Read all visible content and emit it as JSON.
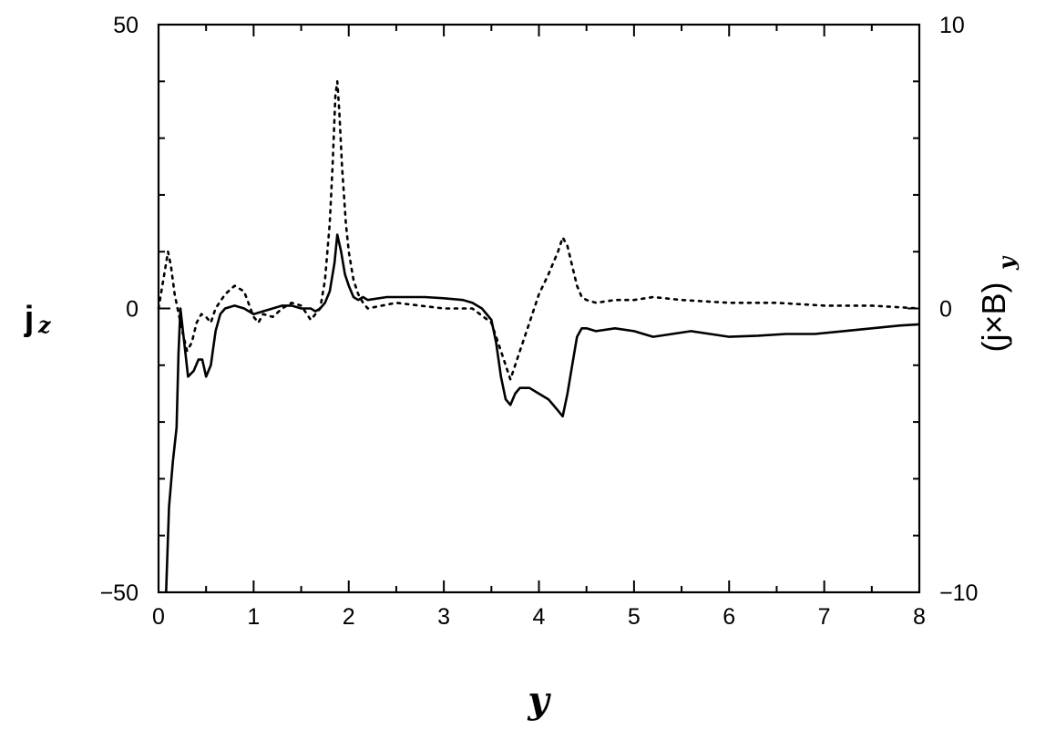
{
  "chart_data": {
    "type": "line",
    "title": "",
    "xlabel": "y",
    "ylabel_left": {
      "base": "j",
      "sub": "z"
    },
    "ylabel_right": {
      "base": "(j×B)",
      "sub": "y"
    },
    "xlim": [
      0,
      8
    ],
    "ylim_left": [
      -50,
      50
    ],
    "ylim_right": [
      -10,
      10
    ],
    "x_ticks": [
      "0",
      "1",
      "2",
      "3",
      "4",
      "5",
      "6",
      "7",
      "8"
    ],
    "y_ticks_left": [
      "50",
      "0",
      "−50"
    ],
    "y_ticks_right": [
      "10",
      "0",
      "−10"
    ],
    "grid": false,
    "series": [
      {
        "axis": "left",
        "style": "solid",
        "x": [
          0.08,
          0.11,
          0.15,
          0.19,
          0.21,
          0.23,
          0.27,
          0.31,
          0.37,
          0.42,
          0.46,
          0.5,
          0.55,
          0.6,
          0.65,
          0.7,
          0.8,
          0.9,
          1.0,
          1.1,
          1.2,
          1.3,
          1.4,
          1.5,
          1.6,
          1.65,
          1.7,
          1.75,
          1.8,
          1.85,
          1.88,
          1.92,
          1.96,
          2.0,
          2.05,
          2.1,
          2.15,
          2.2,
          2.4,
          2.6,
          2.8,
          3.0,
          3.2,
          3.3,
          3.4,
          3.5,
          3.55,
          3.6,
          3.65,
          3.7,
          3.75,
          3.8,
          3.9,
          4.0,
          4.1,
          4.15,
          4.2,
          4.25,
          4.3,
          4.35,
          4.4,
          4.45,
          4.5,
          4.6,
          4.8,
          5.0,
          5.2,
          5.4,
          5.6,
          5.8,
          6.0,
          6.3,
          6.6,
          6.9,
          7.2,
          7.5,
          7.8,
          8.0
        ],
        "values": [
          -50,
          -35,
          -27,
          -21,
          -8,
          0,
          -6,
          -12,
          -11,
          -9,
          -9,
          -12,
          -10,
          -4,
          -1,
          0,
          0.5,
          0,
          -1,
          -0.5,
          0,
          0.5,
          0.5,
          0,
          0,
          -0.5,
          0,
          1,
          3,
          8,
          13,
          10,
          6,
          4,
          2,
          1.5,
          2,
          1.5,
          2,
          2,
          2,
          1.8,
          1.5,
          1,
          0,
          -2,
          -6,
          -12,
          -16,
          -17,
          -15,
          -14,
          -14,
          -15,
          -16,
          -17,
          -18,
          -19,
          -15,
          -10,
          -5,
          -3.5,
          -3.5,
          -4,
          -3.5,
          -4,
          -5,
          -4.5,
          -4,
          -4.5,
          -5,
          -4.8,
          -4.5,
          -4.5,
          -4,
          -3.5,
          -3,
          -2.8
        ]
      },
      {
        "axis": "right",
        "style": "dotted",
        "x": [
          0.0,
          0.05,
          0.1,
          0.13,
          0.17,
          0.2,
          0.25,
          0.3,
          0.35,
          0.4,
          0.45,
          0.5,
          0.55,
          0.6,
          0.7,
          0.8,
          0.9,
          1.0,
          1.05,
          1.1,
          1.2,
          1.3,
          1.4,
          1.5,
          1.6,
          1.7,
          1.75,
          1.8,
          1.83,
          1.86,
          1.88,
          1.9,
          1.93,
          1.97,
          2.0,
          2.05,
          2.1,
          2.15,
          2.2,
          2.5,
          3.0,
          3.3,
          3.5,
          3.6,
          3.7,
          3.75,
          3.8,
          3.9,
          4.0,
          4.1,
          4.2,
          4.25,
          4.3,
          4.35,
          4.4,
          4.45,
          4.5,
          4.6,
          4.8,
          5.0,
          5.2,
          5.5,
          6.0,
          6.5,
          7.0,
          7.5,
          8.0
        ],
        "values": [
          0,
          1,
          2,
          1.5,
          0.5,
          0,
          -0.8,
          -1.5,
          -1.2,
          -0.5,
          -0.2,
          -0.3,
          -0.5,
          0,
          0.5,
          0.8,
          0.6,
          -0.3,
          -0.5,
          -0.2,
          -0.3,
          0,
          0.2,
          0.1,
          -0.4,
          0,
          1,
          3,
          5,
          7.5,
          8,
          7,
          5,
          3,
          2,
          1,
          0.5,
          0.2,
          0,
          0.2,
          0,
          0,
          -0.5,
          -1.5,
          -2.5,
          -2,
          -1.5,
          -0.5,
          0.5,
          1.2,
          2,
          2.5,
          2.2,
          1.5,
          0.8,
          0.4,
          0.3,
          0.2,
          0.3,
          0.3,
          0.4,
          0.3,
          0.2,
          0.2,
          0.1,
          0.1,
          0
        ]
      }
    ]
  }
}
